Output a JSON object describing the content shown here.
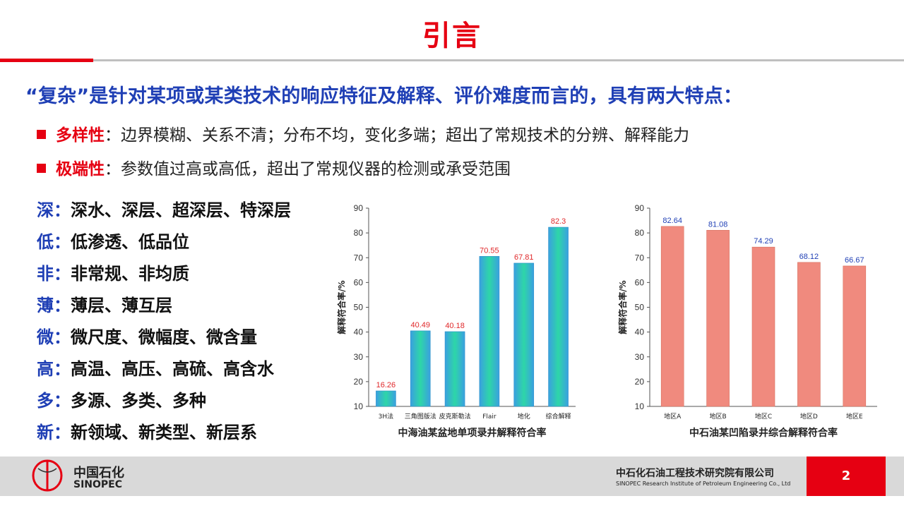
{
  "slide": {
    "title": "引言",
    "lead": "“复杂”是针对某项或某类技术的响应特征及解释、评价难度而言的，具有两大特点：",
    "bullets": [
      {
        "term": "多样性",
        "text": "：边界模糊、关系不清；分布不均，变化多端；超出了常规技术的分辨、解释能力"
      },
      {
        "term": "极端性",
        "text": "：参数值过高或高低，超出了常规仪器的检测或承受范围"
      }
    ],
    "features": [
      {
        "key": "深：",
        "text": "深水、深层、超深层、特深层"
      },
      {
        "key": "低：",
        "text": "低渗透、低品位"
      },
      {
        "key": "非：",
        "text": "非常规、非均质"
      },
      {
        "key": "薄：",
        "text": "薄层、薄互层"
      },
      {
        "key": "微：",
        "text": "微尺度、微幅度、微含量"
      },
      {
        "key": "高：",
        "text": "高温、高压、高硫、高含水"
      },
      {
        "key": "多：",
        "text": "多源、多类、多种"
      },
      {
        "key": "新：",
        "text": "新领域、新类型、新层系"
      }
    ]
  },
  "chart_data": [
    {
      "type": "bar",
      "title": "中海油某盆地单项录井解释符合率",
      "ylabel": "解释符合率/%",
      "xlabel": "",
      "categories": [
        "3H法",
        "三角图版法",
        "皮克斯勒法",
        "Flair",
        "地化",
        "综合解释"
      ],
      "values": [
        16.26,
        40.49,
        40.18,
        70.55,
        67.81,
        82.3
      ],
      "value_labels": [
        "16.26",
        "40.49",
        "40.18",
        "70.55",
        "67.81",
        "82.3"
      ],
      "yticks": [
        "10",
        "20",
        "30",
        "40",
        "50",
        "60",
        "70",
        "80",
        "90"
      ],
      "ylim": [
        10,
        90
      ],
      "bar_color": "#2ec8c0",
      "label_color": "#e0282a",
      "grid": false
    },
    {
      "type": "bar",
      "title": "中石油某凹陷录井综合解释符合率",
      "ylabel": "解释符合率/%",
      "xlabel": "",
      "categories": [
        "地区A",
        "地区B",
        "地区C",
        "地区D",
        "地区E"
      ],
      "values": [
        82.64,
        81.08,
        74.29,
        68.12,
        66.67
      ],
      "value_labels": [
        "82.64",
        "81.08",
        "74.29",
        "68.12",
        "66.67"
      ],
      "yticks": [
        "10",
        "20",
        "30",
        "40",
        "50",
        "60",
        "70",
        "80",
        "90"
      ],
      "ylim": [
        10,
        90
      ],
      "bar_color": "#f08a7e",
      "label_color": "#1f3fb5",
      "grid": false
    }
  ],
  "footer": {
    "brand_cn": "中国石化",
    "brand_en": "SINOPEC",
    "institute_cn": "中石化石油工程技术研究院有限公司",
    "institute_en": "SINOPEC Research Institute of Petroleum Engineering Co., Ltd",
    "page_number": "2",
    "logo_icon": "sinopec-logo-icon"
  },
  "colors": {
    "accent_red": "#e60012",
    "lead_blue": "#1f3fb5",
    "footer_gray": "#d9d9d9"
  }
}
